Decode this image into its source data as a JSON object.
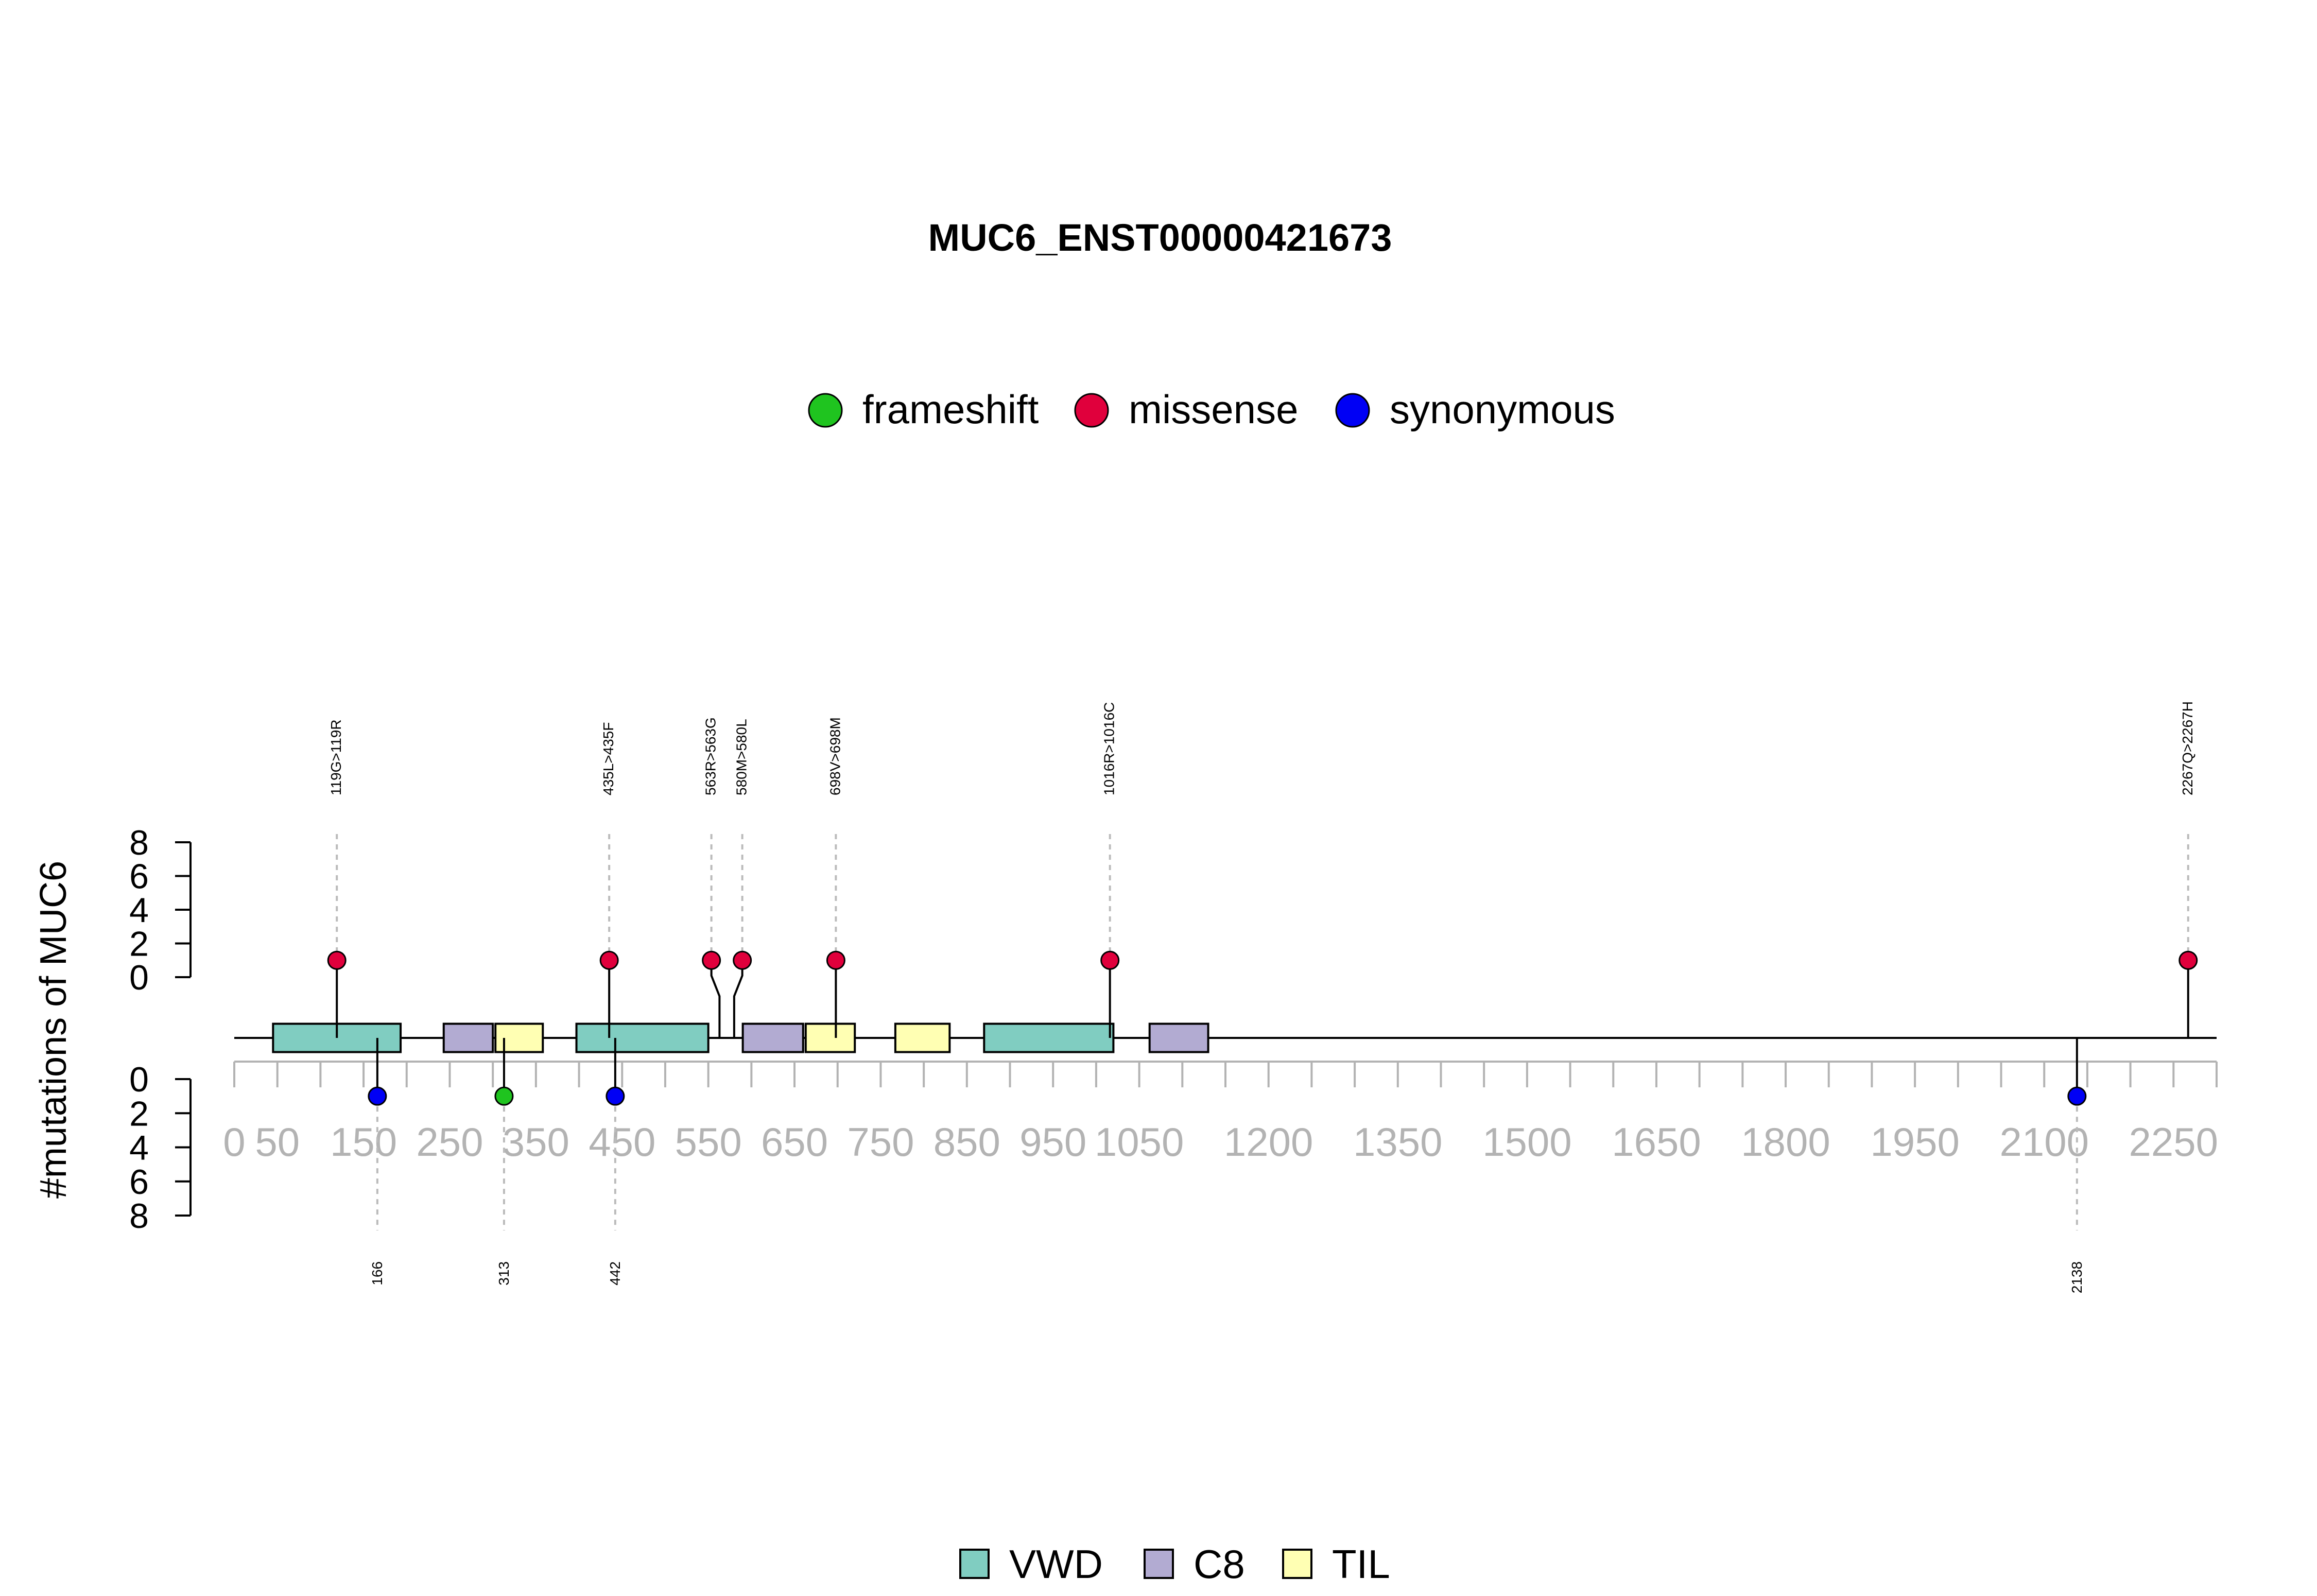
{
  "chart_data": {
    "type": "lollipop",
    "title": "MUC6_ENST00000421673",
    "ylabel": "#mutations of MUC6",
    "protein_length": 2300,
    "xlim": [
      0,
      2300
    ],
    "x_ticks": [
      0,
      50,
      150,
      250,
      350,
      450,
      550,
      650,
      750,
      850,
      950,
      1050,
      1200,
      1350,
      1500,
      1650,
      1800,
      1950,
      2100,
      2250
    ],
    "x_minor_ticks": [
      0,
      50,
      100,
      150,
      200,
      250,
      300,
      350,
      400,
      450,
      500,
      550,
      600,
      650,
      700,
      750,
      800,
      850,
      900,
      950,
      1000,
      1050,
      1100,
      1150,
      1200,
      1250,
      1300,
      1350,
      1400,
      1450,
      1500,
      1550,
      1600,
      1650,
      1700,
      1750,
      1800,
      1850,
      1900,
      1950,
      2000,
      2050,
      2100,
      2150,
      2200,
      2250,
      2300
    ],
    "y_upper_ticks": [
      0,
      2,
      4,
      6,
      8
    ],
    "y_lower_ticks": [
      0,
      2,
      4,
      6,
      8
    ],
    "ylim": [
      0,
      8
    ],
    "mutation_legend": [
      {
        "name": "frameshift",
        "color": "#1fc41f"
      },
      {
        "name": "missense",
        "color": "#e0003c"
      },
      {
        "name": "synonymous",
        "color": "#0000f5"
      }
    ],
    "domain_legend": [
      {
        "name": "VWD",
        "color": "#80cdc1"
      },
      {
        "name": "C8",
        "color": "#b2abd2"
      },
      {
        "name": "TIL",
        "color": "#ffffb3"
      }
    ],
    "domains": [
      {
        "name": "VWD",
        "start": 45,
        "end": 193
      },
      {
        "name": "C8",
        "start": 243,
        "end": 300
      },
      {
        "name": "TIL",
        "start": 303,
        "end": 358
      },
      {
        "name": "VWD",
        "start": 397,
        "end": 550
      },
      {
        "name": "C8",
        "start": 590,
        "end": 660
      },
      {
        "name": "TIL",
        "start": 663,
        "end": 720
      },
      {
        "name": "TIL",
        "start": 767,
        "end": 830
      },
      {
        "name": "VWD",
        "start": 870,
        "end": 1020
      },
      {
        "name": "C8",
        "start": 1062,
        "end": 1130
      }
    ],
    "upper_mutations": [
      {
        "label": "119G>119R",
        "position": 119,
        "count": 1,
        "type": "missense"
      },
      {
        "label": "435L>435F",
        "position": 435,
        "count": 1,
        "type": "missense"
      },
      {
        "label": "563R>563G",
        "position": 563,
        "count": 1,
        "type": "missense"
      },
      {
        "label": "580M>580L",
        "position": 580,
        "count": 1,
        "type": "missense"
      },
      {
        "label": "698V>698M",
        "position": 698,
        "count": 1,
        "type": "missense"
      },
      {
        "label": "1016R>1016C",
        "position": 1016,
        "count": 1,
        "type": "missense"
      },
      {
        "label": "2267Q>2267H",
        "position": 2267,
        "count": 1,
        "type": "missense"
      }
    ],
    "lower_mutations": [
      {
        "label": "166",
        "position": 166,
        "count": 1,
        "type": "synonymous"
      },
      {
        "label": "313",
        "position": 313,
        "count": 1,
        "type": "frameshift"
      },
      {
        "label": "442",
        "position": 442,
        "count": 1,
        "type": "synonymous"
      },
      {
        "label": "2138",
        "position": 2138,
        "count": 1,
        "type": "synonymous"
      }
    ]
  }
}
